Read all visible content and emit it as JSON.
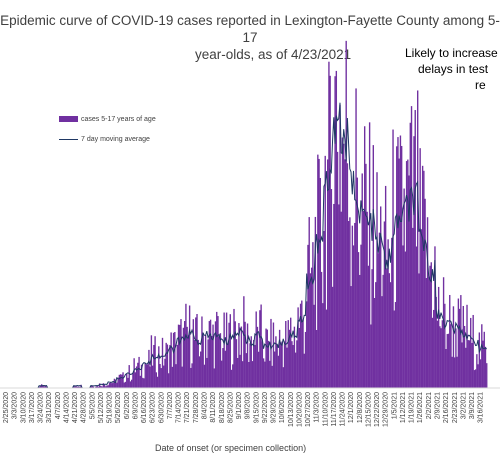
{
  "chart_data": {
    "type": "bar",
    "title": "Epidemic curve of COVID-19 cases reported in Lexington-Fayette County among 5-17 year-olds, as of 4/23/2021",
    "title_line1": "Epidemic curve of COVID-19 cases reported in Lexington-Fayette County among 5-17",
    "title_line2": "year-olds, as of 4/23/2021",
    "annotation_lines": [
      "Likely to increase",
      "delays in test",
      "re"
    ],
    "xlabel": "Date of onset (or specimen collection)",
    "ylabel": "",
    "legend_position": "top-left",
    "grid": false,
    "colors": {
      "bars": "#7030a0",
      "moving_average": "#1f3864",
      "title": "#404040"
    },
    "x_start": "2/25/2020",
    "x_end": "3/25/2021",
    "x_tick_labels": [
      "2/25/2020",
      "3/3/2020",
      "3/10/2020",
      "3/17/2020",
      "3/24/2020",
      "3/31/2020",
      "4/7/2020",
      "4/14/2020",
      "4/21/2020",
      "4/28/2020",
      "5/5/2020",
      "5/12/2020",
      "5/19/2020",
      "5/26/2020",
      "6/2/2020",
      "6/9/2020",
      "6/16/2020",
      "6/23/2020",
      "6/30/2020",
      "7/7/2020",
      "7/14/2020",
      "7/21/2020",
      "7/28/2020",
      "8/4/2020",
      "8/11/2020",
      "8/18/2020",
      "8/25/2020",
      "9/1/2020",
      "9/8/2020",
      "9/15/2020",
      "9/22/2020",
      "9/29/2020",
      "10/6/2020",
      "10/13/2020",
      "10/20/2020",
      "10/27/2020",
      "11/3/2020",
      "11/10/2020",
      "11/17/2020",
      "11/24/2020",
      "12/1/2020",
      "12/8/2020",
      "12/15/2020",
      "12/22/2020",
      "12/29/2020",
      "1/5/2021",
      "1/12/2021",
      "1/19/2021",
      "1/26/2021",
      "2/2/2021",
      "2/9/2021",
      "2/16/2021",
      "2/23/2021",
      "3/2/2021",
      "3/9/2021",
      "3/16/2021"
    ],
    "series": [
      {
        "name": "cases 5-17 years of age",
        "kind": "bar",
        "weekly_values": [
          0,
          0,
          0,
          0,
          0.5,
          0,
          0,
          0,
          0.5,
          0,
          0.5,
          0.8,
          1.3,
          2.2,
          3.2,
          4.3,
          5.4,
          7.0,
          7.0,
          8.6,
          10.2,
          11.8,
          10.2,
          11.3,
          11.3,
          10.2,
          11.3,
          12.4,
          10.2,
          11.3,
          9.2,
          9.7,
          10.2,
          11.8,
          15.1,
          23.7,
          31.2,
          44.1,
          59.1,
          53.8,
          44.1,
          37.7,
          35.5,
          31.2,
          28.0,
          35.5,
          38.7,
          40.9,
          32.3,
          25.8,
          16.1,
          14.0,
          12.9,
          11.8,
          10.2,
          8.6
        ]
      },
      {
        "name": "7 day moving average",
        "kind": "line",
        "weekly_values": [
          0,
          0,
          0,
          0,
          0.5,
          0,
          0,
          0,
          0.5,
          0,
          0.5,
          0.8,
          1.3,
          2.2,
          3.2,
          4.3,
          5.4,
          7.0,
          7.0,
          8.6,
          10.2,
          11.8,
          10.2,
          11.3,
          11.3,
          10.2,
          11.3,
          12.4,
          10.2,
          11.3,
          9.2,
          9.7,
          10.2,
          11.8,
          15.1,
          23.7,
          31.2,
          44.1,
          59.1,
          53.8,
          44.1,
          37.7,
          35.5,
          31.2,
          28.0,
          35.5,
          38.7,
          40.9,
          32.3,
          25.8,
          16.1,
          14.0,
          12.9,
          11.8,
          10.2,
          8.6
        ]
      }
    ],
    "ylim": [
      0,
      70
    ]
  }
}
